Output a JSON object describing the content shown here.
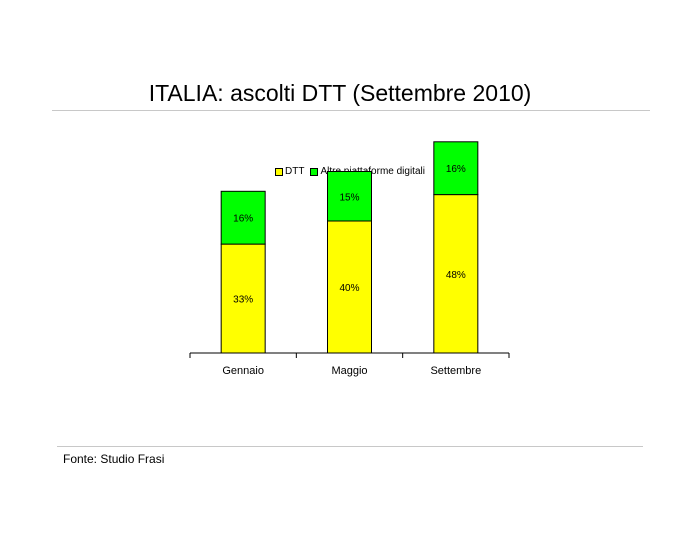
{
  "title": "ITALIA: ascolti DTT (Settembre 2010)",
  "source": "Fonte: Studio Frasi",
  "chart_data": {
    "type": "bar",
    "stacked": true,
    "categories": [
      "Gennaio",
      "Maggio",
      "Settembre"
    ],
    "series": [
      {
        "name": "DTT",
        "color": "#ffff00",
        "values": [
          33,
          40,
          48
        ],
        "labels": [
          "33%",
          "40%",
          "48%"
        ]
      },
      {
        "name": "Altre piattaforme digitali",
        "color": "#00ff00",
        "values": [
          16,
          15,
          16
        ],
        "labels": [
          "16%",
          "15%",
          "16%"
        ]
      }
    ],
    "value_unit": "%",
    "legend_position": "top"
  }
}
